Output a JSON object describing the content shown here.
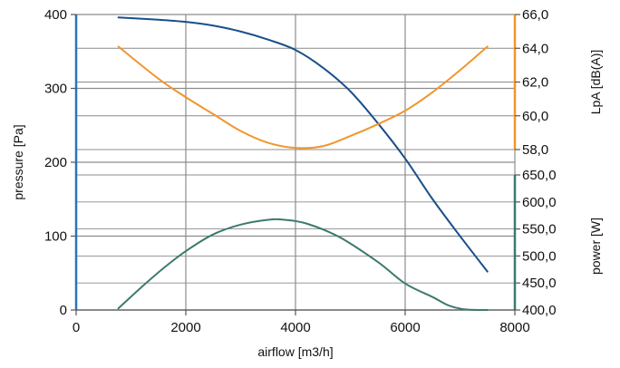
{
  "chart_data": {
    "type": "line",
    "title": "",
    "xlabel": "airflow [m3/h]",
    "xlim": [
      0,
      8000
    ],
    "x_ticks": [
      "0",
      "2000",
      "4000",
      "6000",
      "8000"
    ],
    "grid": true,
    "axes": {
      "pressure": {
        "label": "pressure [Pa]",
        "side": "left",
        "range": [
          0,
          400
        ],
        "ticks": [
          "0",
          "100",
          "200",
          "300",
          "400"
        ]
      },
      "sound": {
        "label": "LpA [dB(A)]",
        "side": "right-top",
        "range": [
          58,
          66
        ],
        "ticks": [
          "58,0",
          "60,0",
          "62,0",
          "64,0",
          "66,0"
        ]
      },
      "power": {
        "label": "power [W]",
        "side": "right-bottom",
        "range": [
          400,
          650
        ],
        "ticks": [
          "400,0",
          "450,0",
          "500,0",
          "550,0",
          "600,0",
          "650,0"
        ]
      }
    },
    "series": [
      {
        "axis": "pressure",
        "color": "#1a4f8a",
        "points": [
          [
            770,
            396
          ],
          [
            1500,
            393
          ],
          [
            2000,
            390
          ],
          [
            2500,
            385
          ],
          [
            3000,
            377
          ],
          [
            3500,
            366
          ],
          [
            4000,
            352
          ],
          [
            4500,
            328
          ],
          [
            5000,
            296
          ],
          [
            5500,
            253
          ],
          [
            6000,
            205
          ],
          [
            6500,
            150
          ],
          [
            7000,
            100
          ],
          [
            7500,
            52
          ]
        ]
      },
      {
        "axis": "sound",
        "color": "#f0962e",
        "points": [
          [
            770,
            64.1
          ],
          [
            1500,
            62.2
          ],
          [
            2000,
            61.1
          ],
          [
            2500,
            60.1
          ],
          [
            3000,
            59.1
          ],
          [
            3500,
            58.4
          ],
          [
            4000,
            58.1
          ],
          [
            4500,
            58.2
          ],
          [
            5000,
            58.8
          ],
          [
            5500,
            59.5
          ],
          [
            6000,
            60.3
          ],
          [
            6500,
            61.4
          ],
          [
            7000,
            62.7
          ],
          [
            7500,
            64.1
          ]
        ]
      },
      {
        "axis": "power",
        "color": "#3d7a6e",
        "points": [
          [
            770,
            403
          ],
          [
            1200,
            443
          ],
          [
            1600,
            478
          ],
          [
            2000,
            509
          ],
          [
            2500,
            540
          ],
          [
            3000,
            558
          ],
          [
            3500,
            567
          ],
          [
            3800,
            567
          ],
          [
            4200,
            560
          ],
          [
            4800,
            535
          ],
          [
            5500,
            489
          ],
          [
            6000,
            449
          ],
          [
            6500,
            424
          ],
          [
            6800,
            408
          ],
          [
            7100,
            401
          ],
          [
            7500,
            400
          ]
        ]
      }
    ]
  },
  "colors": {
    "pressure_axis": "#2a73b8",
    "sound_axis": "#f0962e",
    "power_axis": "#3d7a6e",
    "grid": "#8c8c8c",
    "axis_dark": "#555555"
  }
}
